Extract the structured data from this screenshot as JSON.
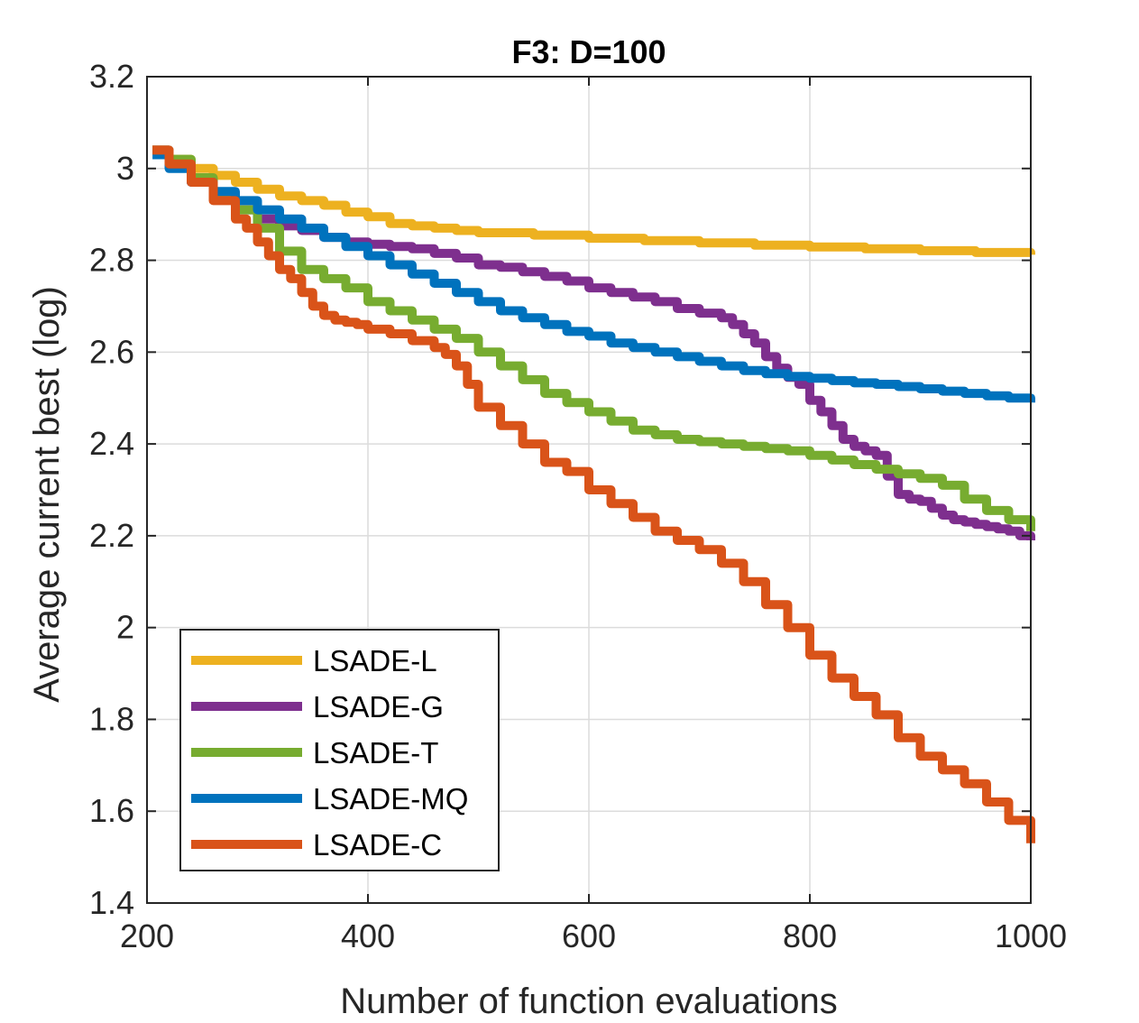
{
  "chart_data": {
    "type": "line",
    "title": "F3: D=100",
    "xlabel": "Number of function evaluations",
    "ylabel": "Average current best (log)",
    "xlim": [
      200,
      1000
    ],
    "ylim": [
      1.4,
      3.2
    ],
    "xticks": [
      200,
      400,
      600,
      800,
      1000
    ],
    "xtick_labels": [
      "200",
      "400",
      "600",
      "800",
      "1000"
    ],
    "yticks": [
      1.4,
      1.6,
      1.8,
      2.0,
      2.2,
      2.4,
      2.6,
      2.8,
      3.0,
      3.2
    ],
    "ytick_labels": [
      "1.4",
      "1.6",
      "1.8",
      "2",
      "2.2",
      "2.4",
      "2.6",
      "2.8",
      "3",
      "3.2"
    ],
    "grid": true,
    "legend_position": "bottom-left",
    "series": [
      {
        "name": "LSADE-L",
        "color": "#EDB120",
        "x": [
          205,
          220,
          240,
          260,
          280,
          300,
          320,
          340,
          360,
          380,
          400,
          420,
          440,
          460,
          480,
          500,
          550,
          600,
          650,
          700,
          750,
          800,
          850,
          900,
          950,
          1000
        ],
        "y": [
          3.04,
          3.02,
          3.0,
          2.985,
          2.97,
          2.955,
          2.94,
          2.93,
          2.92,
          2.905,
          2.895,
          2.88,
          2.875,
          2.87,
          2.865,
          2.86,
          2.855,
          2.848,
          2.843,
          2.838,
          2.833,
          2.829,
          2.825,
          2.821,
          2.817,
          2.812
        ]
      },
      {
        "name": "LSADE-G",
        "color": "#7E2F8E",
        "x": [
          205,
          220,
          240,
          260,
          280,
          300,
          320,
          340,
          360,
          380,
          400,
          420,
          440,
          460,
          480,
          500,
          520,
          540,
          560,
          580,
          600,
          620,
          640,
          660,
          680,
          700,
          720,
          730,
          740,
          750,
          760,
          770,
          780,
          790,
          800,
          810,
          820,
          830,
          840,
          850,
          860,
          870,
          880,
          890,
          900,
          910,
          920,
          930,
          940,
          950,
          960,
          970,
          980,
          990,
          1000
        ],
        "y": [
          3.04,
          3.01,
          2.97,
          2.94,
          2.91,
          2.89,
          2.875,
          2.865,
          2.85,
          2.84,
          2.835,
          2.83,
          2.825,
          2.815,
          2.805,
          2.79,
          2.785,
          2.775,
          2.765,
          2.755,
          2.74,
          2.73,
          2.72,
          2.71,
          2.695,
          2.685,
          2.675,
          2.66,
          2.64,
          2.62,
          2.59,
          2.565,
          2.545,
          2.53,
          2.495,
          2.47,
          2.44,
          2.41,
          2.395,
          2.385,
          2.375,
          2.33,
          2.29,
          2.28,
          2.275,
          2.26,
          2.245,
          2.235,
          2.23,
          2.225,
          2.22,
          2.215,
          2.21,
          2.2,
          2.19
        ]
      },
      {
        "name": "LSADE-T",
        "color": "#77AC30",
        "x": [
          205,
          220,
          240,
          260,
          280,
          300,
          320,
          340,
          360,
          380,
          400,
          420,
          440,
          460,
          480,
          500,
          520,
          540,
          560,
          580,
          600,
          620,
          640,
          660,
          680,
          700,
          720,
          740,
          760,
          780,
          800,
          820,
          840,
          860,
          880,
          900,
          920,
          940,
          960,
          980,
          1000
        ],
        "y": [
          3.04,
          3.02,
          2.98,
          2.94,
          2.91,
          2.87,
          2.82,
          2.78,
          2.76,
          2.74,
          2.71,
          2.69,
          2.67,
          2.65,
          2.63,
          2.6,
          2.57,
          2.54,
          2.51,
          2.49,
          2.47,
          2.45,
          2.43,
          2.42,
          2.41,
          2.405,
          2.4,
          2.395,
          2.39,
          2.385,
          2.375,
          2.365,
          2.355,
          2.345,
          2.335,
          2.325,
          2.31,
          2.28,
          2.255,
          2.235,
          2.21
        ]
      },
      {
        "name": "LSADE-MQ",
        "color": "#0072BD",
        "x": [
          205,
          220,
          240,
          260,
          280,
          300,
          320,
          340,
          360,
          380,
          400,
          420,
          440,
          460,
          480,
          500,
          520,
          540,
          560,
          580,
          600,
          620,
          640,
          660,
          680,
          700,
          720,
          740,
          760,
          780,
          800,
          820,
          840,
          860,
          880,
          900,
          920,
          940,
          960,
          980,
          1000
        ],
        "y": [
          3.03,
          3.0,
          2.97,
          2.95,
          2.93,
          2.91,
          2.89,
          2.87,
          2.85,
          2.83,
          2.81,
          2.79,
          2.77,
          2.75,
          2.73,
          2.71,
          2.69,
          2.675,
          2.66,
          2.645,
          2.635,
          2.62,
          2.61,
          2.6,
          2.59,
          2.58,
          2.57,
          2.56,
          2.553,
          2.547,
          2.543,
          2.538,
          2.533,
          2.53,
          2.525,
          2.52,
          2.515,
          2.51,
          2.505,
          2.5,
          2.49
        ]
      },
      {
        "name": "LSADE-C",
        "color": "#D95319",
        "x": [
          205,
          220,
          240,
          260,
          280,
          290,
          300,
          310,
          320,
          330,
          340,
          350,
          360,
          370,
          380,
          390,
          400,
          420,
          440,
          460,
          470,
          480,
          490,
          500,
          520,
          540,
          560,
          580,
          600,
          620,
          640,
          660,
          680,
          700,
          720,
          740,
          760,
          780,
          800,
          820,
          840,
          860,
          880,
          900,
          920,
          940,
          960,
          980,
          1000
        ],
        "y": [
          3.04,
          3.01,
          2.97,
          2.93,
          2.89,
          2.87,
          2.84,
          2.81,
          2.78,
          2.76,
          2.73,
          2.7,
          2.68,
          2.67,
          2.665,
          2.66,
          2.65,
          2.64,
          2.625,
          2.61,
          2.595,
          2.57,
          2.53,
          2.48,
          2.44,
          2.4,
          2.36,
          2.34,
          2.3,
          2.27,
          2.24,
          2.21,
          2.19,
          2.17,
          2.14,
          2.1,
          2.05,
          2.0,
          1.94,
          1.89,
          1.85,
          1.81,
          1.76,
          1.72,
          1.69,
          1.66,
          1.62,
          1.58,
          1.53
        ]
      }
    ]
  }
}
